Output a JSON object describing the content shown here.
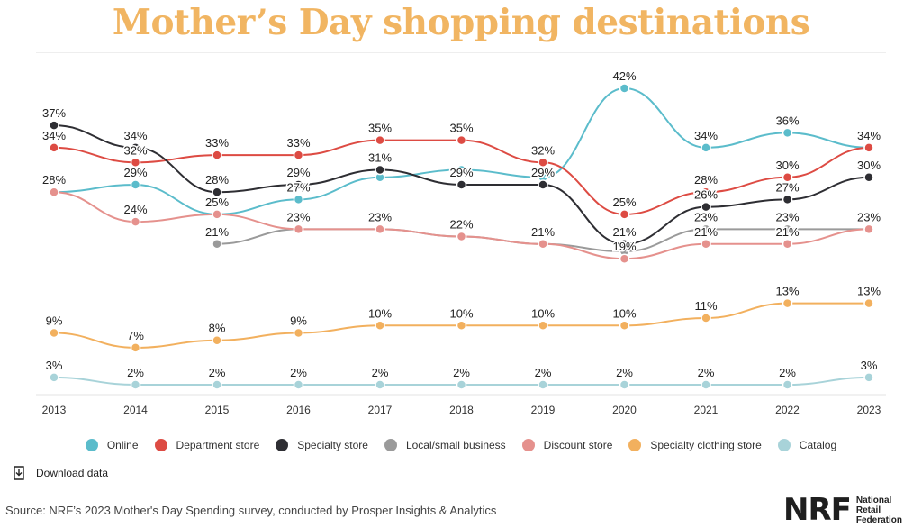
{
  "page": {
    "title": "Mother’s Day shopping destinations",
    "download_label": "Download data",
    "source": "Source: NRF’s 2023 Mother's Day Spending survey, conducted by Prosper Insights & Analytics",
    "brand": {
      "mark": "NRF",
      "line1": "National",
      "line2": "Retail",
      "line3": "Federation"
    }
  },
  "chart_data": {
    "type": "line",
    "title": "Mother’s Day shopping destinations",
    "x": [
      "2013",
      "2014",
      "2015",
      "2016",
      "2017",
      "2018",
      "2019",
      "2020",
      "2021",
      "2022",
      "2023"
    ],
    "ylim": [
      0,
      45
    ],
    "value_suffix": "%",
    "legend_position": "bottom",
    "series": [
      {
        "name": "Online",
        "color": "#5bbccb",
        "values": [
          28,
          29,
          25,
          27,
          30,
          31,
          30,
          42,
          34,
          36,
          34
        ],
        "labels": [
          false,
          true,
          true,
          true,
          false,
          false,
          false,
          true,
          true,
          true,
          false
        ]
      },
      {
        "name": "Department store",
        "color": "#dd4b43",
        "values": [
          34,
          32,
          33,
          33,
          35,
          35,
          32,
          25,
          28,
          30,
          34
        ],
        "labels": [
          true,
          true,
          true,
          true,
          true,
          true,
          true,
          true,
          true,
          true,
          true
        ]
      },
      {
        "name": "Specialty store",
        "color": "#2e2e33",
        "values": [
          37,
          34,
          28,
          29,
          31,
          29,
          29,
          21,
          26,
          27,
          30
        ],
        "labels": [
          true,
          true,
          true,
          true,
          true,
          true,
          true,
          true,
          true,
          true,
          true
        ]
      },
      {
        "name": "Local/small business",
        "color": "#9a9a9a",
        "values": [
          null,
          null,
          21,
          23,
          23,
          22,
          21,
          20,
          23,
          23,
          23
        ],
        "labels": [
          false,
          false,
          true,
          true,
          true,
          true,
          true,
          false,
          true,
          true,
          true
        ]
      },
      {
        "name": "Discount store",
        "color": "#e5918d",
        "values": [
          28,
          24,
          25,
          23,
          23,
          22,
          21,
          19,
          21,
          21,
          23
        ],
        "labels": [
          true,
          true,
          false,
          false,
          false,
          false,
          false,
          true,
          true,
          true,
          false
        ]
      },
      {
        "name": "Specialty clothing store",
        "color": "#f2b05e",
        "values": [
          9,
          7,
          8,
          9,
          10,
          10,
          10,
          10,
          11,
          13,
          13
        ],
        "labels": [
          true,
          true,
          true,
          true,
          true,
          true,
          true,
          true,
          true,
          true,
          true
        ]
      },
      {
        "name": "Catalog",
        "color": "#a8d3d9",
        "values": [
          3,
          2,
          2,
          2,
          2,
          2,
          2,
          2,
          2,
          2,
          3
        ],
        "labels": [
          true,
          true,
          true,
          true,
          true,
          true,
          true,
          true,
          true,
          true,
          true
        ]
      }
    ]
  }
}
